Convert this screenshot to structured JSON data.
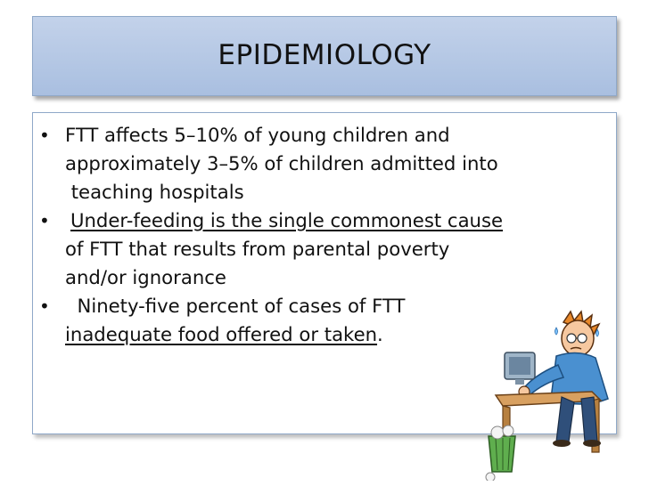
{
  "slide": {
    "title": "EPIDEMIOLOGY",
    "bullets": [
      {
        "line1": "FTT affects 5–10% of young children and",
        "line2": "approximately 3–5% of children admitted into",
        "line3": " teaching hospitals"
      },
      {
        "line1": "Under-feeding is the single commonest cause",
        "line2": "of FTT that results from parental poverty",
        "line3": "and/or ignorance"
      },
      {
        "line1_prefix": "  Ninety-five percent of cases of FTT",
        "line2_underlined": "inadequate food offered or taken",
        "line2_suffix": "."
      }
    ],
    "bullet_char": "•"
  },
  "clipart": {
    "icon": "stressed-man-at-computer-icon"
  }
}
